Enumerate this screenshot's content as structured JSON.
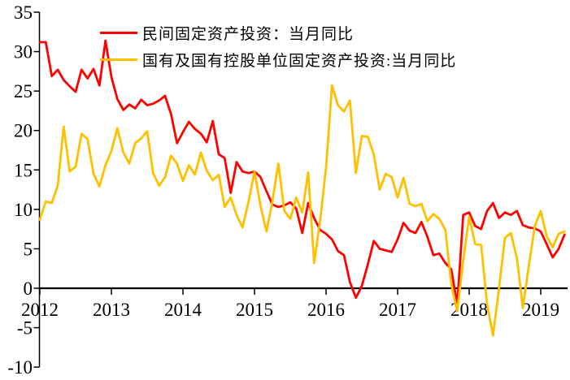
{
  "page": {
    "background": "#ffffff"
  },
  "legend": {
    "position": "top-left-inside",
    "items": [
      {
        "label": "民间固定资产投资：当月同比",
        "color": "#FF0000"
      },
      {
        "label": "国有及国有控股单位固定资产投资:当月同比",
        "color": "#FFC000"
      }
    ]
  },
  "chart_data": {
    "type": "line",
    "title": "",
    "xlabel": "",
    "ylabel": "",
    "grid": false,
    "legend_position": "top-left-inside",
    "x_axis": {
      "tick_labels": [
        "2012",
        "2013",
        "2014",
        "2015",
        "2016",
        "2017",
        "2018",
        "2019"
      ],
      "frequency": "monthly",
      "start_month": "2012-02",
      "end_month": "2019-06"
    },
    "y_axis": {
      "ticks": [
        35,
        30,
        25,
        20,
        15,
        10,
        5,
        0,
        -5,
        -10
      ],
      "range": [
        -10,
        35
      ],
      "unit": "%"
    },
    "series": [
      {
        "name": "民间固定资产投资：当月同比",
        "color": "#FF0000",
        "values": [
          31.2,
          31.2,
          26.9,
          27.7,
          26.4,
          25.6,
          24.9,
          27.7,
          26.6,
          27.8,
          25.7,
          31.4,
          26.8,
          24.0,
          22.6,
          23.3,
          22.8,
          23.9,
          23.2,
          23.4,
          23.8,
          24.4,
          22.1,
          18.4,
          19.8,
          21.1,
          20.2,
          19.6,
          18.5,
          21.2,
          17.0,
          16.5,
          12.1,
          16.0,
          14.8,
          14.6,
          14.8,
          14.1,
          12.3,
          10.6,
          10.3,
          10.5,
          10.9,
          10.1,
          7.0,
          10.8,
          8.9,
          7.4,
          6.9,
          6.2,
          4.7,
          4.2,
          0.8,
          -1.2,
          0.3,
          3.0,
          6.0,
          5.0,
          4.8,
          4.6,
          6.2,
          8.3,
          7.3,
          7.0,
          8.4,
          6.5,
          4.2,
          4.4,
          3.2,
          2.4,
          -2.1,
          9.3,
          9.6,
          7.9,
          7.5,
          9.8,
          10.8,
          8.9,
          9.6,
          9.3,
          9.8,
          8.0,
          7.7,
          7.6,
          7.2,
          5.6,
          3.9,
          5.0,
          6.8
        ]
      },
      {
        "name": "国有及国有控股单位固定资产投资:当月同比",
        "color": "#FFC000",
        "values": [
          8.7,
          11.0,
          10.8,
          13.0,
          20.5,
          14.8,
          15.4,
          19.6,
          18.9,
          14.5,
          12.9,
          15.6,
          17.4,
          20.3,
          17.2,
          15.8,
          18.4,
          19.0,
          19.9,
          14.6,
          13.0,
          14.1,
          16.8,
          15.8,
          13.6,
          15.6,
          14.4,
          17.2,
          14.9,
          13.7,
          14.4,
          10.3,
          11.5,
          9.3,
          7.7,
          11.0,
          14.8,
          10.5,
          7.2,
          11.0,
          15.8,
          9.8,
          8.8,
          11.5,
          9.6,
          14.7,
          3.2,
          8.6,
          15.3,
          25.7,
          23.2,
          22.4,
          23.8,
          14.6,
          19.3,
          19.2,
          17.0,
          12.5,
          14.5,
          14.1,
          11.5,
          14.0,
          10.7,
          10.4,
          10.7,
          8.5,
          9.4,
          8.8,
          7.4,
          0.5,
          -2.9,
          3.5,
          9.1,
          5.6,
          5.5,
          -2.0,
          -6.0,
          0.0,
          6.4,
          7.0,
          3.8,
          -2.5,
          2.8,
          7.9,
          9.8,
          6.6,
          5.2,
          6.9,
          7.2
        ]
      }
    ]
  }
}
